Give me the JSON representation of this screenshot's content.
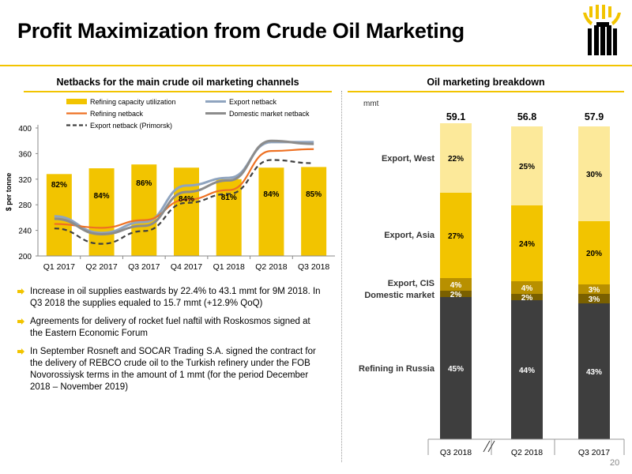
{
  "title": "Profit Maximization from Crude Oil Marketing",
  "page_number": "20",
  "colors": {
    "accent_yellow": "#f2c400",
    "bar_yellow": "#f2c400",
    "light_yellow": "#fce99a",
    "gold": "#b89000",
    "brown": "#7a6000",
    "dark_grey": "#3e3e3e",
    "export_netback": "#8fa4bf",
    "refining_netback": "#ee7123",
    "domestic_netback": "#8c8c8c",
    "primorsk": "#404040"
  },
  "left_section": {
    "heading": "Netbacks for the main crude oil marketing channels"
  },
  "right_section": {
    "heading": "Oil marketing breakdown"
  },
  "bullets": [
    "Increase in oil supplies eastwards by 22.4% to 43.1 mmt for 9M 2018. In Q3 2018 the supplies equaled to 15.7 mmt (+12.9% QoQ)",
    "Agreements for delivery of rocket fuel naftil with Roskosmos signed at the Eastern Economic Forum",
    "In September Rosneft and SOCAR Trading S.A. signed the contract for the delivery of REBCO crude oil to the Turkish refinery under the FOB Novorossiysk terms in the amount of 1 mmt (for the period December 2018 – November 2019)"
  ],
  "chart_data": [
    {
      "type": "bar",
      "title": "Netbacks for the main crude oil marketing channels",
      "ylabel": "$ per tonne",
      "ylim": [
        200,
        400
      ],
      "yticks": [
        "200",
        "240",
        "280",
        "320",
        "360",
        "400"
      ],
      "categories": [
        "Q1 2017",
        "Q2 2017",
        "Q3 2017",
        "Q4 2017",
        "Q1 2018",
        "Q2 2018",
        "Q3 2018"
      ],
      "legend_position": "top",
      "bars": {
        "name": "Refining capacity utilization",
        "heights": [
          328,
          337,
          343,
          338,
          320,
          338,
          339
        ],
        "labels": [
          "82%",
          "84%",
          "86%",
          "84%",
          "81%",
          "84%",
          "85%"
        ]
      },
      "series": [
        {
          "name": "Export netback",
          "values": [
            262,
            236,
            253,
            310,
            322,
            378,
            378
          ]
        },
        {
          "name": "Refining netback",
          "values": [
            250,
            244,
            256,
            288,
            303,
            364,
            367
          ]
        },
        {
          "name": "Domestic market netback",
          "values": [
            258,
            234,
            247,
            300,
            318,
            380,
            375
          ]
        },
        {
          "name": "Export netback (Primorsk)",
          "values": [
            243,
            219,
            239,
            283,
            297,
            350,
            345
          ]
        }
      ]
    },
    {
      "type": "bar",
      "title": "Oil marketing breakdown",
      "unit": "mmt",
      "categories": [
        "Q3 2018",
        "Q2 2018",
        "Q3 2017"
      ],
      "totals": [
        "59.1",
        "56.8",
        "57.9"
      ],
      "series": [
        {
          "name": "Refining in Russia",
          "values": [
            45,
            44,
            43
          ],
          "labels": [
            "45%",
            "44%",
            "43%"
          ]
        },
        {
          "name": "Domestic market",
          "values": [
            2,
            2,
            3
          ],
          "labels": [
            "2%",
            "2%",
            "3%"
          ]
        },
        {
          "name": "Export, CIS",
          "values": [
            4,
            4,
            3
          ],
          "labels": [
            "4%",
            "4%",
            "3%"
          ]
        },
        {
          "name": "Export, Asia",
          "values": [
            27,
            24,
            20
          ],
          "labels": [
            "27%",
            "24%",
            "20%"
          ]
        },
        {
          "name": "Export, West",
          "values": [
            22,
            25,
            30
          ],
          "labels": [
            "22%",
            "25%",
            "30%"
          ]
        }
      ]
    }
  ]
}
